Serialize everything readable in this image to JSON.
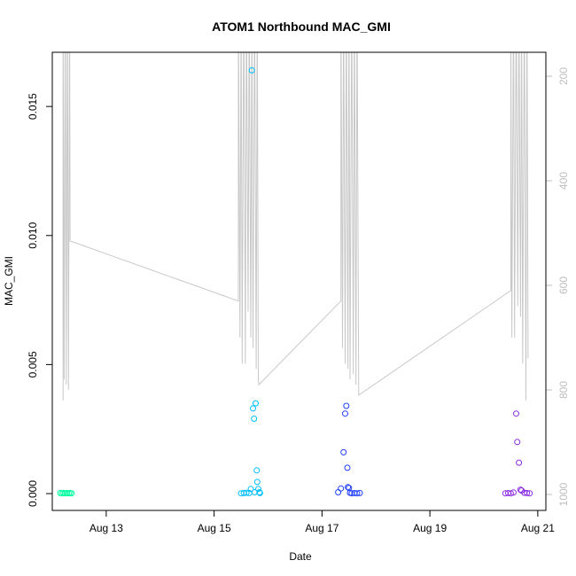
{
  "chart_data": {
    "type": "scatter",
    "title": "ATOM1 Northbound MAC_GMI",
    "xlabel": "Date",
    "ylabel": "MAC_GMI",
    "x_ticks": [
      "Aug 13",
      "Aug 15",
      "Aug 17",
      "Aug 19",
      "Aug 21"
    ],
    "x_tick_values": [
      13,
      15,
      17,
      19,
      21
    ],
    "xlim": [
      12.0,
      21.15
    ],
    "y_ticks": [
      "0.000",
      "0.005",
      "0.010",
      "0.015"
    ],
    "y_tick_values": [
      0,
      0.005,
      0.01,
      0.015
    ],
    "ylim": [
      0,
      0.0171
    ],
    "right_axis": {
      "ticks": [
        "200",
        "400",
        "600",
        "800",
        "1000"
      ],
      "tick_values": [
        200,
        400,
        600,
        800,
        1000
      ],
      "reversed": true,
      "color": "#bebebe"
    },
    "series": [
      {
        "color": "#00ffa0",
        "points": [
          [
            12.15,
            2e-05
          ],
          [
            12.18,
            1e-05
          ],
          [
            12.21,
            2e-05
          ],
          [
            12.24,
            1e-05
          ],
          [
            12.27,
            2e-05
          ],
          [
            12.3,
            1e-05
          ],
          [
            12.33,
            2e-05
          ],
          [
            12.36,
            1e-05
          ]
        ]
      },
      {
        "color": "#00bfff",
        "points": [
          [
            15.5,
            1e-05
          ],
          [
            15.55,
            2e-05
          ],
          [
            15.6,
            3e-05
          ],
          [
            15.65,
            2e-05
          ],
          [
            15.68,
            0.00018
          ],
          [
            15.7,
            0.0164
          ],
          [
            15.72,
            0.0033
          ],
          [
            15.74,
            0.0029
          ],
          [
            15.75,
            5e-05
          ],
          [
            15.77,
            0.0035
          ],
          [
            15.79,
            0.0009
          ],
          [
            15.8,
            0.00045
          ],
          [
            15.82,
            0.00018
          ],
          [
            15.84,
            5e-05
          ],
          [
            15.85,
            2e-05
          ]
        ]
      },
      {
        "color": "#1f3fff",
        "points": [
          [
            17.3,
            5e-05
          ],
          [
            17.35,
            0.0002
          ],
          [
            17.4,
            0.0016
          ],
          [
            17.43,
            0.0031
          ],
          [
            17.45,
            0.0034
          ],
          [
            17.47,
            0.001
          ],
          [
            17.48,
            0.00025
          ],
          [
            17.5,
            0.00022
          ],
          [
            17.52,
            3e-05
          ],
          [
            17.55,
            1e-05
          ],
          [
            17.6,
            2e-05
          ],
          [
            17.65,
            1e-05
          ],
          [
            17.7,
            2e-05
          ]
        ]
      },
      {
        "color": "#8a2be2",
        "points": [
          [
            20.4,
            1e-05
          ],
          [
            20.45,
            2e-05
          ],
          [
            20.5,
            1e-05
          ],
          [
            20.55,
            4e-05
          ],
          [
            20.6,
            0.0031
          ],
          [
            20.62,
            0.002
          ],
          [
            20.65,
            0.0012
          ],
          [
            20.68,
            0.00015
          ],
          [
            20.7,
            0.00012
          ],
          [
            20.75,
            3e-05
          ],
          [
            20.8,
            2e-05
          ],
          [
            20.85,
            1e-05
          ]
        ]
      }
    ],
    "line_series": {
      "color": "#c8c8c8",
      "axis": "right",
      "points": [
        [
          12.2,
          820
        ],
        [
          12.2,
          50
        ],
        [
          12.22,
          780
        ],
        [
          12.24,
          50
        ],
        [
          12.26,
          790
        ],
        [
          12.28,
          50
        ],
        [
          12.3,
          800
        ],
        [
          12.32,
          50
        ],
        [
          12.33,
          515
        ],
        [
          15.45,
          630
        ],
        [
          15.45,
          50
        ],
        [
          15.48,
          700
        ],
        [
          15.5,
          50
        ],
        [
          15.52,
          750
        ],
        [
          15.55,
          50
        ],
        [
          15.58,
          750
        ],
        [
          15.6,
          50
        ],
        [
          15.63,
          650
        ],
        [
          15.65,
          50
        ],
        [
          15.68,
          700
        ],
        [
          15.7,
          50
        ],
        [
          15.72,
          720
        ],
        [
          15.75,
          50
        ],
        [
          15.78,
          760
        ],
        [
          15.8,
          50
        ],
        [
          15.82,
          780
        ],
        [
          15.83,
          790
        ],
        [
          17.35,
          630
        ],
        [
          17.35,
          50
        ],
        [
          17.38,
          720
        ],
        [
          17.4,
          50
        ],
        [
          17.43,
          750
        ],
        [
          17.45,
          50
        ],
        [
          17.48,
          760
        ],
        [
          17.5,
          50
        ],
        [
          17.52,
          780
        ],
        [
          17.55,
          50
        ],
        [
          17.58,
          770
        ],
        [
          17.6,
          50
        ],
        [
          17.63,
          790
        ],
        [
          17.65,
          50
        ],
        [
          17.68,
          810
        ],
        [
          20.5,
          610
        ],
        [
          20.5,
          50
        ],
        [
          20.52,
          700
        ],
        [
          20.55,
          50
        ],
        [
          20.57,
          700
        ],
        [
          20.6,
          50
        ],
        [
          20.63,
          640
        ],
        [
          20.65,
          50
        ],
        [
          20.68,
          660
        ],
        [
          20.7,
          50
        ],
        [
          20.72,
          750
        ],
        [
          20.75,
          50
        ],
        [
          20.78,
          820
        ],
        [
          20.8,
          50
        ],
        [
          20.82,
          740
        ]
      ]
    }
  }
}
